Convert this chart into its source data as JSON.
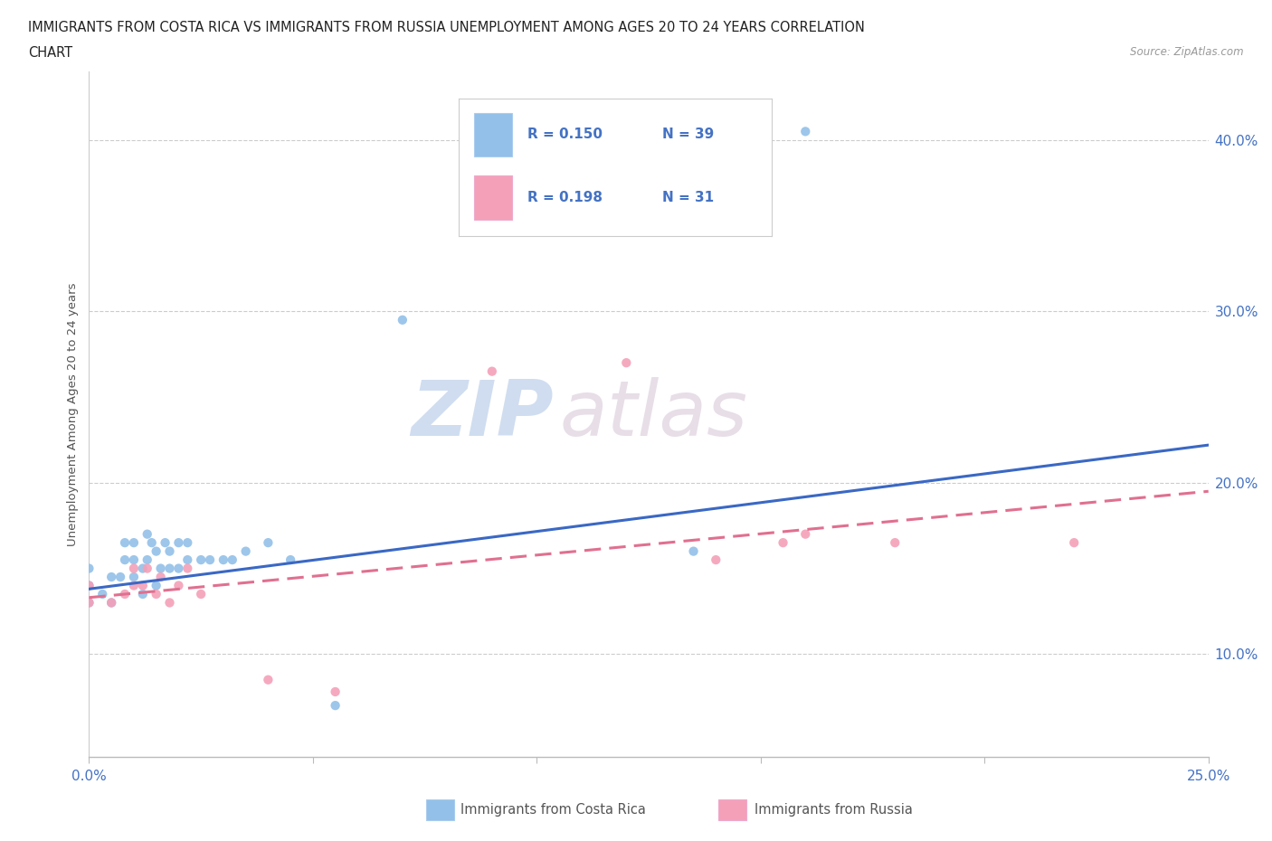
{
  "title_line1": "IMMIGRANTS FROM COSTA RICA VS IMMIGRANTS FROM RUSSIA UNEMPLOYMENT AMONG AGES 20 TO 24 YEARS CORRELATION",
  "title_line2": "CHART",
  "source": "Source: ZipAtlas.com",
  "ylabel": "Unemployment Among Ages 20 to 24 years",
  "xlim": [
    0.0,
    0.25
  ],
  "ylim": [
    0.04,
    0.44
  ],
  "xticks": [
    0.0,
    0.05,
    0.1,
    0.15,
    0.2,
    0.25
  ],
  "xtick_labels": [
    "0.0%",
    "",
    "",
    "",
    "",
    "25.0%"
  ],
  "yticks_right": [
    0.1,
    0.2,
    0.3,
    0.4
  ],
  "ytick_labels_right": [
    "10.0%",
    "20.0%",
    "30.0%",
    "40.0%"
  ],
  "costa_rica_color": "#92c0e8",
  "russia_color": "#f4a0b8",
  "trend_blue": "#3a68c4",
  "trend_pink": "#e07090",
  "watermark_zip": "ZIP",
  "watermark_atlas": "atlas",
  "costa_rica_x": [
    0.0,
    0.0,
    0.0,
    0.003,
    0.005,
    0.005,
    0.007,
    0.008,
    0.008,
    0.01,
    0.01,
    0.01,
    0.012,
    0.012,
    0.013,
    0.013,
    0.014,
    0.015,
    0.015,
    0.016,
    0.017,
    0.018,
    0.018,
    0.02,
    0.02,
    0.022,
    0.022,
    0.025,
    0.027,
    0.03,
    0.032,
    0.035,
    0.04,
    0.045,
    0.055,
    0.07,
    0.135,
    0.16
  ],
  "costa_rica_y": [
    0.13,
    0.14,
    0.15,
    0.135,
    0.13,
    0.145,
    0.145,
    0.155,
    0.165,
    0.145,
    0.155,
    0.165,
    0.135,
    0.15,
    0.155,
    0.17,
    0.165,
    0.14,
    0.16,
    0.15,
    0.165,
    0.15,
    0.16,
    0.15,
    0.165,
    0.155,
    0.165,
    0.155,
    0.155,
    0.155,
    0.155,
    0.16,
    0.165,
    0.155,
    0.07,
    0.295,
    0.16,
    0.405
  ],
  "russia_x": [
    0.0,
    0.0,
    0.005,
    0.008,
    0.01,
    0.01,
    0.012,
    0.013,
    0.015,
    0.016,
    0.018,
    0.02,
    0.022,
    0.025,
    0.04,
    0.055,
    0.09,
    0.12,
    0.14,
    0.155,
    0.16,
    0.18,
    0.22
  ],
  "russia_y": [
    0.13,
    0.14,
    0.13,
    0.135,
    0.14,
    0.15,
    0.14,
    0.15,
    0.135,
    0.145,
    0.13,
    0.14,
    0.15,
    0.135,
    0.085,
    0.078,
    0.265,
    0.27,
    0.155,
    0.165,
    0.17,
    0.165,
    0.165
  ],
  "trend_cr_x0": 0.0,
  "trend_cr_y0": 0.138,
  "trend_cr_x1": 0.25,
  "trend_cr_y1": 0.222,
  "trend_ru_x0": 0.0,
  "trend_ru_y0": 0.133,
  "trend_ru_x1": 0.25,
  "trend_ru_y1": 0.195
}
